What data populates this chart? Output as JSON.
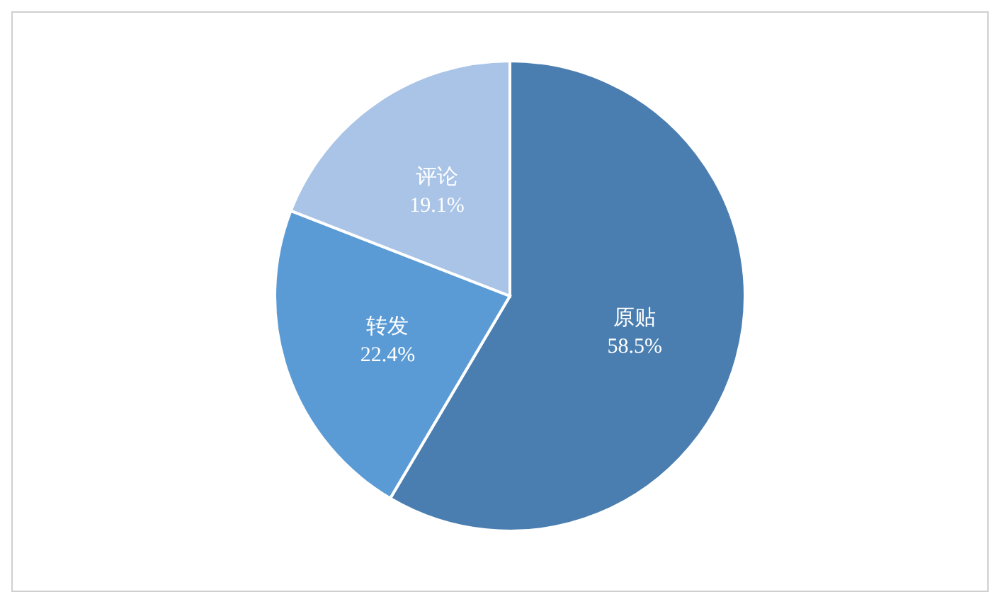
{
  "chart_data": {
    "type": "pie",
    "categories": [
      "原贴",
      "转发",
      "评论"
    ],
    "values": [
      58.5,
      22.4,
      19.1
    ],
    "colors": [
      "#4a7eb0",
      "#5b9bd5",
      "#a9c4e6"
    ],
    "value_labels": [
      "58.5%",
      "22.4%",
      "19.1%"
    ]
  }
}
